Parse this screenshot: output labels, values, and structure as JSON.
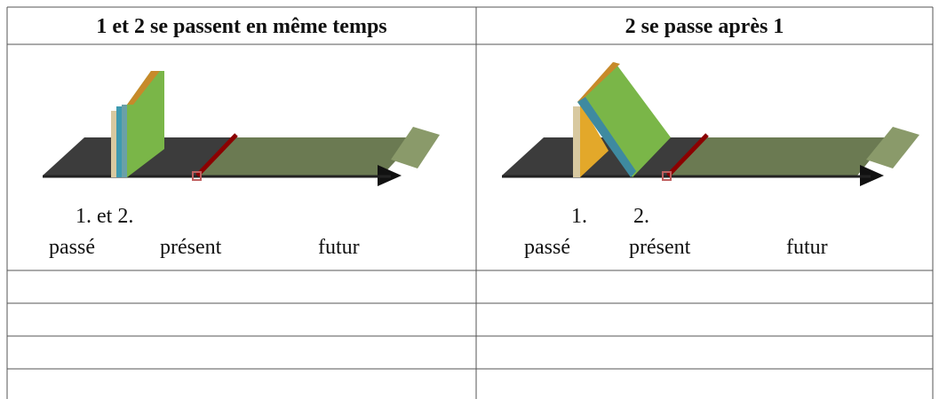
{
  "table": {
    "headers": [
      "1 et 2 se passent en même temps",
      "2 se passe après 1"
    ],
    "diagrams": [
      {
        "event_labels": [
          "1. et 2."
        ],
        "timeline_labels": [
          "passé",
          "présent",
          "futur"
        ]
      },
      {
        "event_labels": [
          "1.",
          "2."
        ],
        "timeline_labels": [
          "passé",
          "présent",
          "futur"
        ]
      }
    ]
  }
}
